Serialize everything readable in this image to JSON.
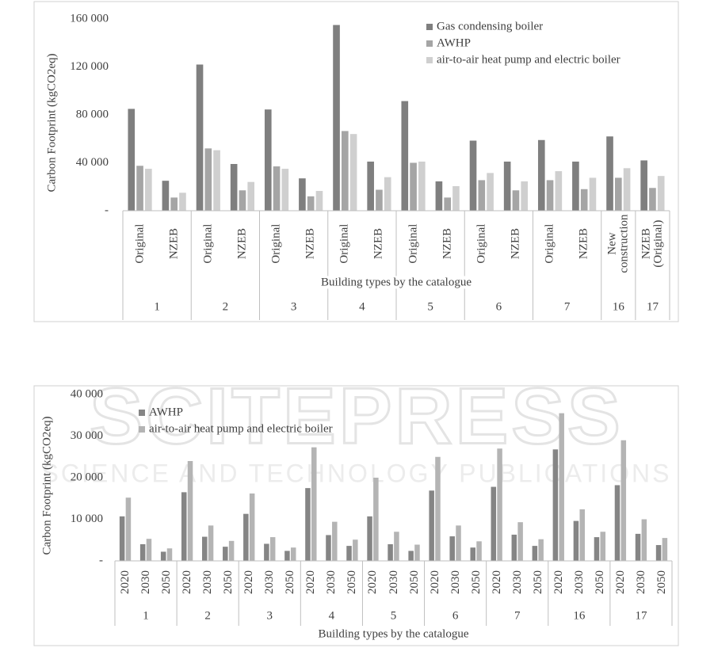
{
  "chart_data": [
    {
      "type": "bar",
      "y_label": "Carbon Footprint (kgCO2eq)",
      "x_label": "Building types by the catalogue",
      "groups": [
        {
          "label": "1",
          "categories": [
            "Original",
            "NZEB"
          ]
        },
        {
          "label": "2",
          "categories": [
            "Original",
            "NZEB"
          ]
        },
        {
          "label": "3",
          "categories": [
            "Original",
            "NZEB"
          ]
        },
        {
          "label": "4",
          "categories": [
            "Original",
            "NZEB"
          ]
        },
        {
          "label": "5",
          "categories": [
            "Original",
            "NZEB"
          ]
        },
        {
          "label": "6",
          "categories": [
            "Original",
            "NZEB"
          ]
        },
        {
          "label": "7",
          "categories": [
            "Original",
            "NZEB"
          ]
        },
        {
          "label": "16",
          "categories": [
            "New construction"
          ]
        },
        {
          "label": "17",
          "categories": [
            "NZEB (Original)"
          ]
        }
      ],
      "series": [
        {
          "name": "Gas condensing boiler",
          "color": "#7f7f7f",
          "values": [
            85000,
            25000,
            122000,
            39000,
            84500,
            27000,
            155000,
            41000,
            91500,
            24500,
            58500,
            41000,
            59000,
            41000,
            62000,
            42000
          ]
        },
        {
          "name": "AWHP",
          "color": "#a5a5a5",
          "values": [
            37500,
            11000,
            52000,
            17000,
            37000,
            12000,
            66500,
            17500,
            40000,
            11000,
            25500,
            17000,
            25500,
            18000,
            27500,
            19000
          ]
        },
        {
          "name": "air-to-air heat pump and electric boiler",
          "color": "#cfcfcf",
          "values": [
            35000,
            15000,
            50500,
            24000,
            35000,
            16500,
            64000,
            28000,
            41000,
            20500,
            31500,
            24500,
            33000,
            27500,
            35500,
            29000
          ]
        }
      ],
      "ylim": [
        0,
        160000
      ],
      "yticks": [
        {
          "value": 0,
          "label": "-"
        },
        {
          "value": 40000,
          "label": "40 000"
        },
        {
          "value": 80000,
          "label": "80 000"
        },
        {
          "value": 120000,
          "label": "120 000"
        },
        {
          "value": 160000,
          "label": "160 000"
        }
      ],
      "grid": false
    },
    {
      "type": "bar",
      "y_label": "Carbon Footprint (kgCO2eq)",
      "x_label": "Building types by the catalogue",
      "groups": [
        {
          "label": "1",
          "categories": [
            "2020",
            "2030",
            "2050"
          ]
        },
        {
          "label": "2",
          "categories": [
            "2020",
            "2030",
            "2050"
          ]
        },
        {
          "label": "3",
          "categories": [
            "2020",
            "2030",
            "2050"
          ]
        },
        {
          "label": "4",
          "categories": [
            "2020",
            "2030",
            "2050"
          ]
        },
        {
          "label": "5",
          "categories": [
            "2020",
            "2030",
            "2050"
          ]
        },
        {
          "label": "6",
          "categories": [
            "2020",
            "2030",
            "2050"
          ]
        },
        {
          "label": "7",
          "categories": [
            "2020",
            "2030",
            "2050"
          ]
        },
        {
          "label": "16",
          "categories": [
            "2020",
            "2030",
            "2050"
          ]
        },
        {
          "label": "17",
          "categories": [
            "2020",
            "2030",
            "2050"
          ]
        }
      ],
      "series": [
        {
          "name": "AWHP",
          "color": "#858585",
          "values": [
            10700,
            4000,
            2200,
            16500,
            5800,
            3400,
            11300,
            4100,
            2400,
            17500,
            6200,
            3600,
            10700,
            4000,
            2400,
            16900,
            5900,
            3200,
            17800,
            6300,
            3600,
            26800,
            9600,
            5700,
            18200,
            6500,
            3800
          ]
        },
        {
          "name": "air-to-air heat pump and electric boiler",
          "color": "#b4b4b4",
          "values": [
            15200,
            5300,
            3000,
            24000,
            8500,
            4800,
            16200,
            5700,
            3200,
            27300,
            9400,
            5100,
            20000,
            7000,
            3900,
            25000,
            8500,
            4700,
            27000,
            9300,
            5200,
            35500,
            12400,
            7000,
            29000,
            10000,
            5500
          ]
        }
      ],
      "ylim": [
        0,
        40000
      ],
      "yticks": [
        {
          "value": 0,
          "label": "-"
        },
        {
          "value": 10000,
          "label": "10 000"
        },
        {
          "value": 20000,
          "label": "20 000"
        },
        {
          "value": 30000,
          "label": "30 000"
        },
        {
          "value": 40000,
          "label": "40 000"
        }
      ],
      "grid": false
    }
  ],
  "watermark": {
    "title": "SCITEPRESS",
    "subtitle": "SCIENCE AND TECHNOLOGY PUBLICATIONS"
  }
}
